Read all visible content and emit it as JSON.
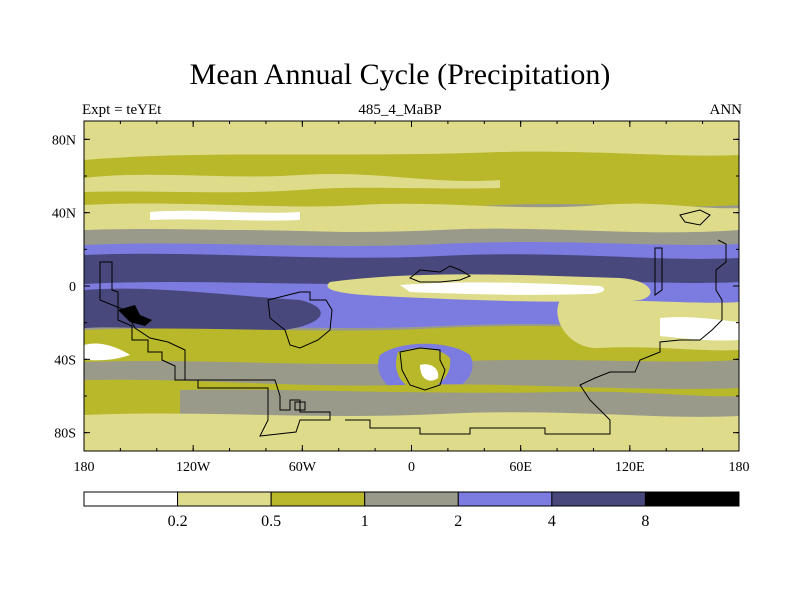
{
  "chart_data": {
    "type": "contour-map",
    "title": "Mean Annual Cycle (Precipitation)",
    "subtitle_left": "Expt = teYEt",
    "subtitle_center": "485_4_MaBP",
    "subtitle_right": "ANN",
    "x_ticks": [
      "180",
      "120W",
      "60W",
      "0",
      "60E",
      "120E",
      "180"
    ],
    "x_range": [
      -180,
      180
    ],
    "y_ticks": [
      "80N",
      "40N",
      "0",
      "40S",
      "80S"
    ],
    "y_range": [
      -90,
      90
    ],
    "colorbar": {
      "levels": [
        "0.2",
        "0.5",
        "1",
        "2",
        "4",
        "8"
      ],
      "colors": [
        "#ffffff",
        "#dedc8a",
        "#b9b82a",
        "#9a9a8a",
        "#7c7ce0",
        "#48487c",
        "#000000"
      ]
    }
  }
}
